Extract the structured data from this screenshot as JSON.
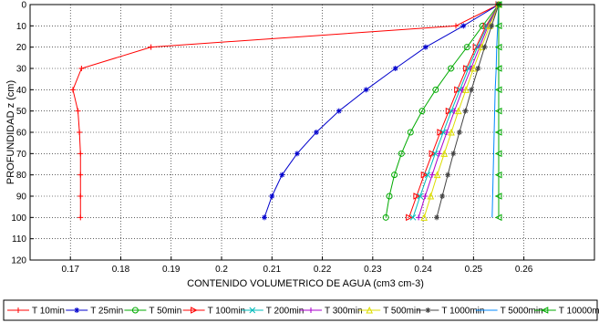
{
  "chart_data": {
    "type": "line",
    "title": "",
    "xlabel": "CONTENIDO VOLUMETRICO DE AGUA (cm3 cm-3)",
    "ylabel": "PROFUNDIDAD z (cm)",
    "xlim": [
      0.162,
      0.274
    ],
    "ylim": [
      0,
      120
    ],
    "y_inverted": true,
    "grid": true,
    "legend_position": "bottom",
    "x_ticks": [
      0.17,
      0.18,
      0.19,
      0.2,
      0.21,
      0.22,
      0.23,
      0.24,
      0.25,
      0.26
    ],
    "x_tick_labels": [
      "0.17",
      "0.18",
      "0.19",
      "0.2",
      "0.21",
      "0.22",
      "0.23",
      "0.24",
      "0.25",
      "0.26"
    ],
    "y_ticks": [
      0,
      10,
      20,
      30,
      40,
      50,
      60,
      70,
      80,
      90,
      100,
      110,
      120
    ],
    "y_tick_labels": [
      "0",
      "10",
      "20",
      "30",
      "40",
      "50",
      "60",
      "70",
      "80",
      "90",
      "100",
      "110",
      "120"
    ],
    "depths": [
      0,
      10,
      20,
      30,
      40,
      50,
      60,
      70,
      80,
      90,
      100
    ],
    "series": [
      {
        "name": "T 10min",
        "color": "#ff0000",
        "marker": "plus",
        "x": [
          0.255,
          0.2465,
          0.186,
          0.1722,
          0.1705,
          0.1715,
          0.1718,
          0.172,
          0.172,
          0.172,
          0.172
        ]
      },
      {
        "name": "T 25min",
        "color": "#0000cc",
        "marker": "star",
        "x": [
          0.255,
          0.248,
          0.2405,
          0.2345,
          0.2287,
          0.2233,
          0.2188,
          0.215,
          0.212,
          0.21,
          0.2085
        ]
      },
      {
        "name": "T 50min",
        "color": "#00aa00",
        "marker": "circle",
        "x": [
          0.255,
          0.2518,
          0.2487,
          0.2455,
          0.2425,
          0.2398,
          0.2375,
          0.2357,
          0.2343,
          0.2333,
          0.2326
        ]
      },
      {
        "name": "T 100min",
        "color": "#ff0000",
        "marker": "triangle-right",
        "x": [
          0.255,
          0.2525,
          0.2505,
          0.2486,
          0.2468,
          0.2451,
          0.2434,
          0.2418,
          0.2402,
          0.2387,
          0.2372
        ]
      },
      {
        "name": "T 200min",
        "color": "#00bbbb",
        "marker": "x",
        "x": [
          0.255,
          0.2527,
          0.2508,
          0.249,
          0.2473,
          0.2456,
          0.244,
          0.2424,
          0.2409,
          0.2394,
          0.238
        ]
      },
      {
        "name": "T 300min",
        "color": "#aa00cc",
        "marker": "plus",
        "x": [
          0.255,
          0.2529,
          0.2512,
          0.2495,
          0.2478,
          0.2462,
          0.2447,
          0.2432,
          0.2418,
          0.2404,
          0.2391
        ]
      },
      {
        "name": "T 500min",
        "color": "#dddd00",
        "marker": "triangle-up",
        "x": [
          0.255,
          0.2532,
          0.2516,
          0.25,
          0.2485,
          0.247,
          0.2456,
          0.2442,
          0.2428,
          0.2415,
          0.2402
        ]
      },
      {
        "name": "T 1000min",
        "color": "#444444",
        "marker": "star",
        "x": [
          0.255,
          0.2536,
          0.2522,
          0.2509,
          0.2496,
          0.2484,
          0.2472,
          0.246,
          0.2449,
          0.2438,
          0.2427
        ]
      },
      {
        "name": "T 5000min",
        "color": "#0088ff",
        "marker": "none",
        "x": [
          0.255,
          0.2548,
          0.2546,
          0.2545,
          0.2543,
          0.2542,
          0.2541,
          0.254,
          0.2539,
          0.2538,
          0.2537
        ]
      },
      {
        "name": "T 10000min",
        "color": "#00aa00",
        "marker": "triangle-left",
        "x": [
          0.255,
          0.255,
          0.255,
          0.255,
          0.255,
          0.255,
          0.255,
          0.255,
          0.255,
          0.255,
          0.255
        ]
      }
    ]
  }
}
